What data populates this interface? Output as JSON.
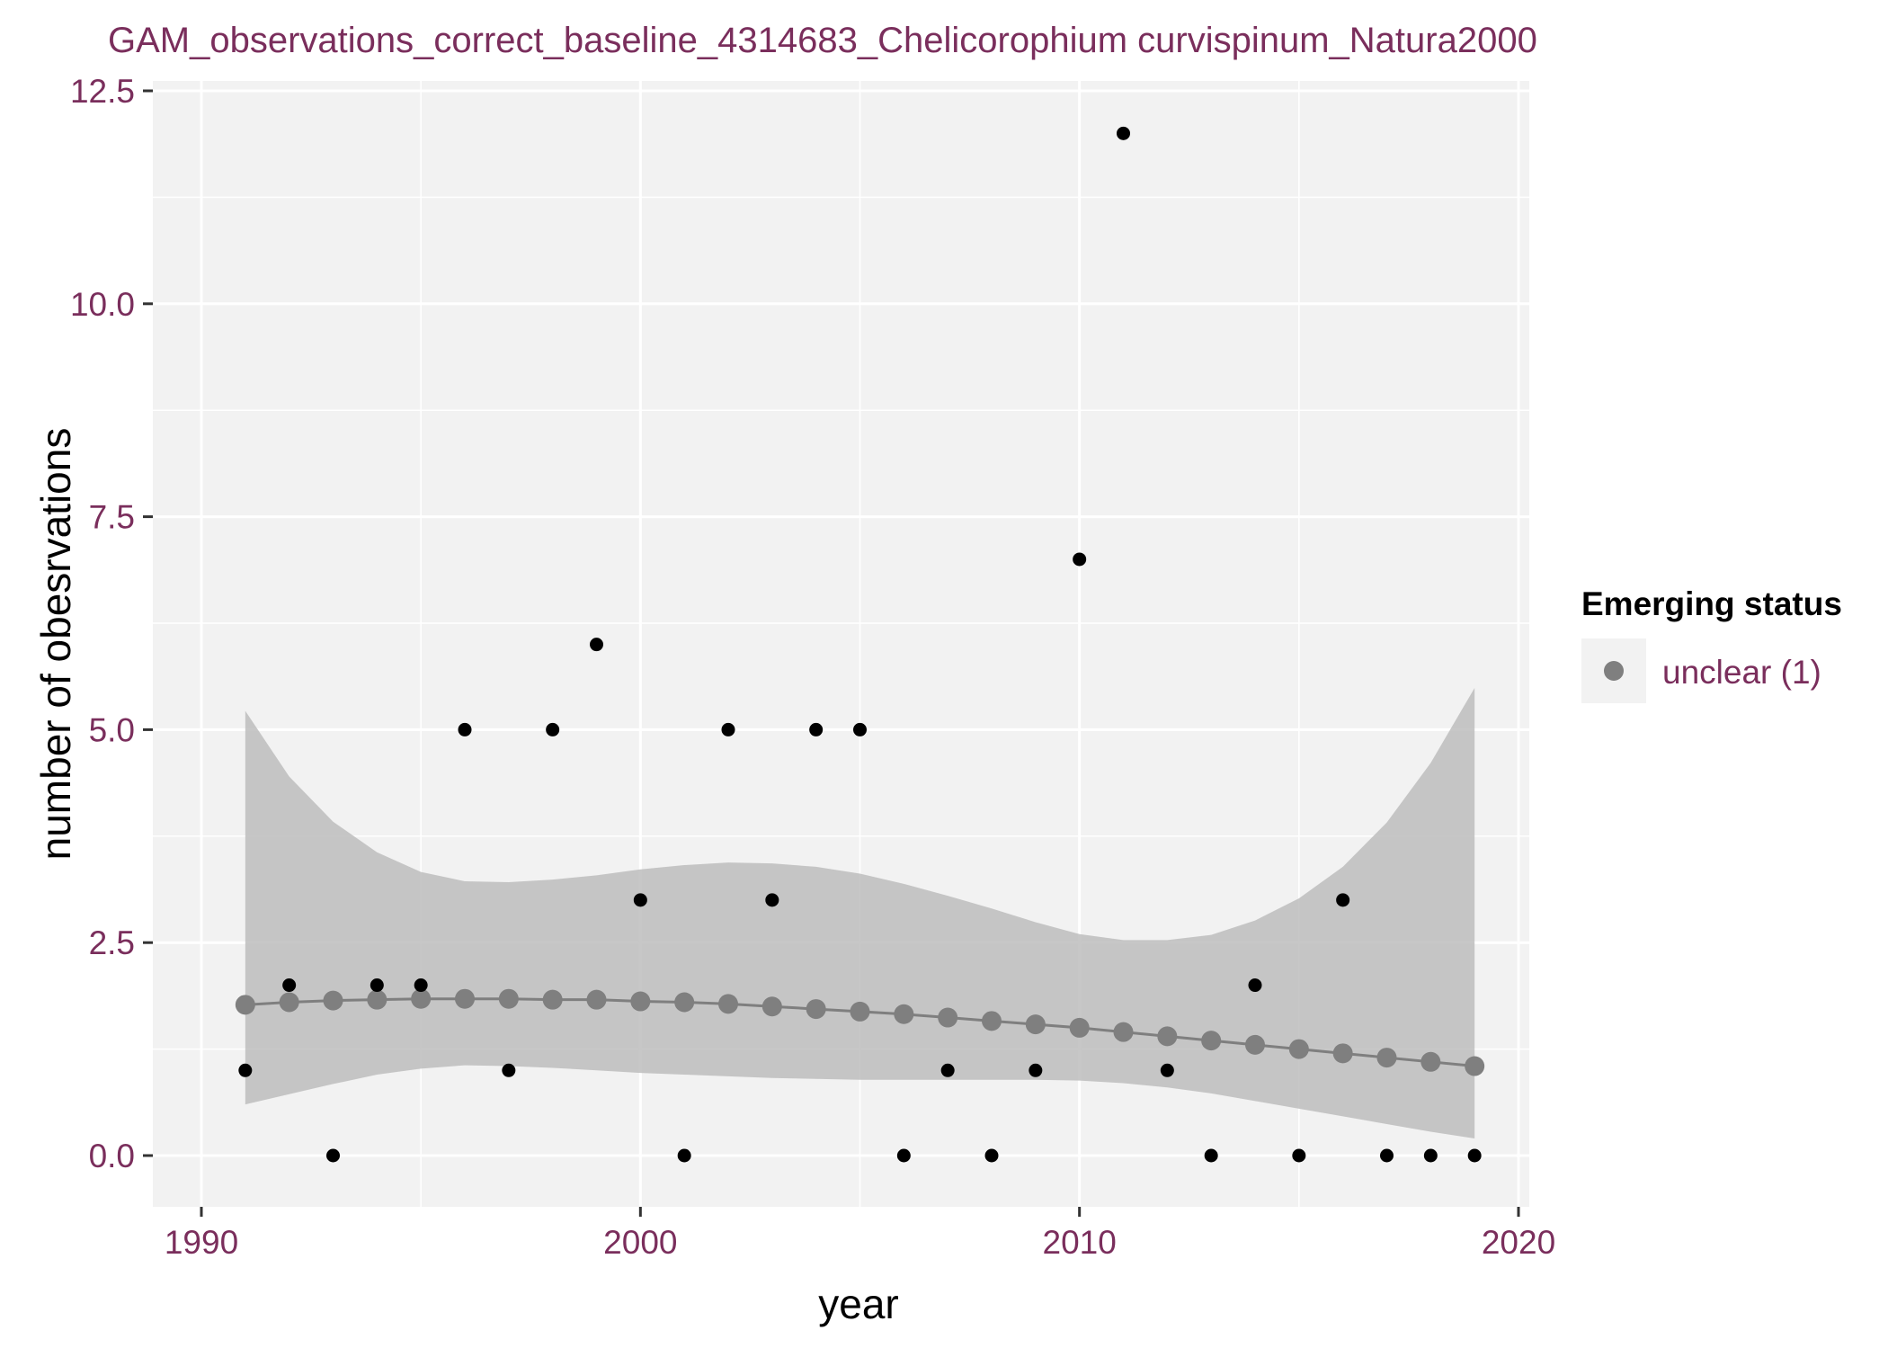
{
  "chart_data": {
    "type": "scatter",
    "title": "GAM_observations_correct_baseline_4314683_Chelicorophium curvispinum_Natura2000",
    "xlabel": "year",
    "ylabel": "number of obesrvations",
    "xlim": [
      1990,
      2020
    ],
    "ylim": [
      0,
      12.5
    ],
    "x_ticks": [
      "1990",
      "2000",
      "2010",
      "2020"
    ],
    "y_ticks": [
      "0.0",
      "2.5",
      "5.0",
      "7.5",
      "10.0",
      "12.5"
    ],
    "grid": true,
    "legend": {
      "title": "Emerging status",
      "position": "right",
      "entries": [
        {
          "label": "unclear (1)",
          "color": "#7f7f7f"
        }
      ]
    },
    "observations": {
      "color": "#000000",
      "x": [
        1991,
        1992,
        1993,
        1994,
        1995,
        1996,
        1997,
        1998,
        1999,
        2000,
        2001,
        2002,
        2003,
        2004,
        2005,
        2006,
        2007,
        2008,
        2009,
        2010,
        2011,
        2012,
        2013,
        2014,
        2015,
        2016,
        2017,
        2018,
        2019
      ],
      "y": [
        1,
        2,
        0,
        2,
        2,
        5,
        1,
        5,
        6,
        3,
        0,
        5,
        3,
        5,
        5,
        0,
        1,
        0,
        1,
        7,
        12,
        1,
        0,
        2,
        0,
        3,
        0,
        0,
        0
      ]
    },
    "gam_fit": {
      "name": "unclear (1)",
      "color": "#7f7f7f",
      "x": [
        1991,
        1992,
        1993,
        1994,
        1995,
        1996,
        1997,
        1998,
        1999,
        2000,
        2001,
        2002,
        2003,
        2004,
        2005,
        2006,
        2007,
        2008,
        2009,
        2010,
        2011,
        2012,
        2013,
        2014,
        2015,
        2016,
        2017,
        2018,
        2019
      ],
      "y": [
        1.77,
        1.8,
        1.82,
        1.83,
        1.84,
        1.84,
        1.84,
        1.83,
        1.83,
        1.81,
        1.8,
        1.78,
        1.75,
        1.72,
        1.69,
        1.66,
        1.62,
        1.58,
        1.54,
        1.5,
        1.45,
        1.4,
        1.35,
        1.3,
        1.25,
        1.2,
        1.15,
        1.1,
        1.05
      ],
      "ci_lower": [
        0.6,
        0.72,
        0.84,
        0.95,
        1.02,
        1.06,
        1.05,
        1.03,
        1.0,
        0.97,
        0.95,
        0.93,
        0.91,
        0.9,
        0.89,
        0.89,
        0.89,
        0.89,
        0.89,
        0.88,
        0.85,
        0.8,
        0.73,
        0.64,
        0.55,
        0.46,
        0.37,
        0.28,
        0.2
      ],
      "ci_upper": [
        5.22,
        4.45,
        3.92,
        3.56,
        3.33,
        3.22,
        3.21,
        3.24,
        3.29,
        3.36,
        3.41,
        3.44,
        3.43,
        3.39,
        3.31,
        3.19,
        3.05,
        2.9,
        2.74,
        2.6,
        2.53,
        2.53,
        2.59,
        2.76,
        3.02,
        3.39,
        3.91,
        4.61,
        5.49
      ]
    }
  }
}
